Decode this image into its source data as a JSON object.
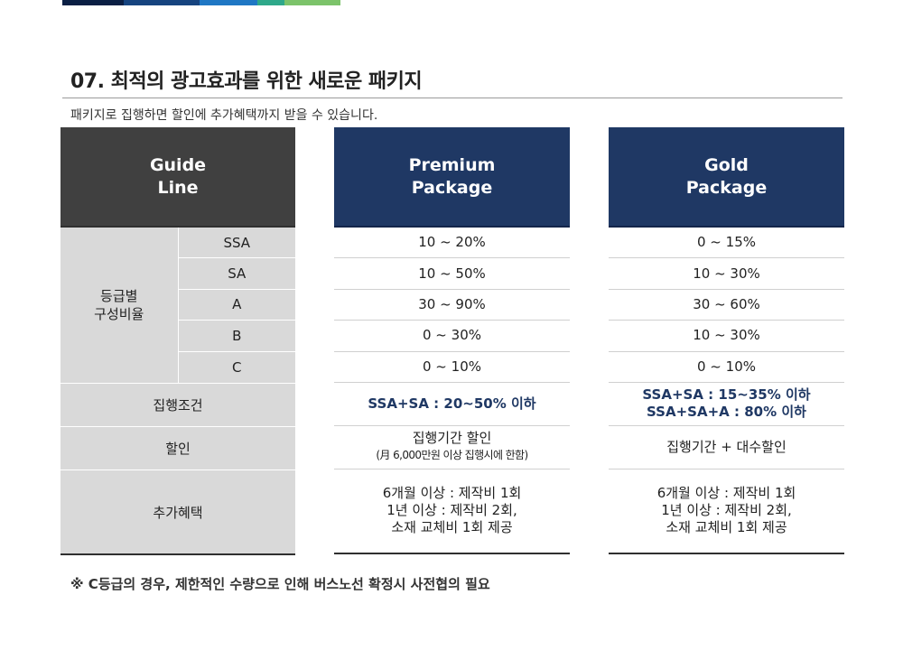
{
  "colors": {
    "bar": [
      "#0a1f44",
      "#16447f",
      "#1f77c4",
      "#2ea88a",
      "#7cc36a"
    ],
    "guide_header": "#404040",
    "package_header": "#1f3864",
    "guide_body": "#d9d9d9"
  },
  "title": "07. 최적의 광고효과를 위한 새로운 패키지",
  "subtitle": "패키지로 집행하면 할인에 추가혜택까지 받을 수 있습니다.",
  "guide": {
    "header_line1": "Guide",
    "header_line2": "Line",
    "grade_label_line1": "등급별",
    "grade_label_line2": "구성비율",
    "grades": [
      "SSA",
      "SA",
      "A",
      "B",
      "C"
    ],
    "condition_label": "집행조건",
    "discount_label": "할인",
    "benefit_label": "추가혜택"
  },
  "premium": {
    "header_line1": "Premium",
    "header_line2": "Package",
    "ratios": [
      "10 ~ 20%",
      "10 ~ 50%",
      "30 ~ 90%",
      "0 ~ 30%",
      "0 ~ 10%"
    ],
    "condition_line1": "SSA+SA : 20~50% 이하",
    "discount_line1": "집행기간 할인",
    "discount_line2": "(月 6,000만원 이상 집행시에 한함)",
    "benefit_line1": "6개월 이상 : 제작비 1회",
    "benefit_line2": "1년 이상 : 제작비 2회,",
    "benefit_line3": "소재 교체비 1회 제공"
  },
  "gold": {
    "header_line1": "Gold",
    "header_line2": "Package",
    "ratios": [
      "0 ~ 15%",
      "10 ~ 30%",
      "30 ~ 60%",
      "10 ~ 30%",
      "0 ~ 10%"
    ],
    "condition_line1": "SSA+SA : 15~35% 이하",
    "condition_line2": "SSA+SA+A : 80% 이하",
    "discount_line1": "집행기간 + 대수할인",
    "benefit_line1": "6개월 이상 : 제작비 1회",
    "benefit_line2": "1년 이상 : 제작비 2회,",
    "benefit_line3": "소재 교체비 1회 제공"
  },
  "note": "※ C등급의 경우, 제한적인 수량으로 인해 버스노선 확정시 사전협의 필요"
}
